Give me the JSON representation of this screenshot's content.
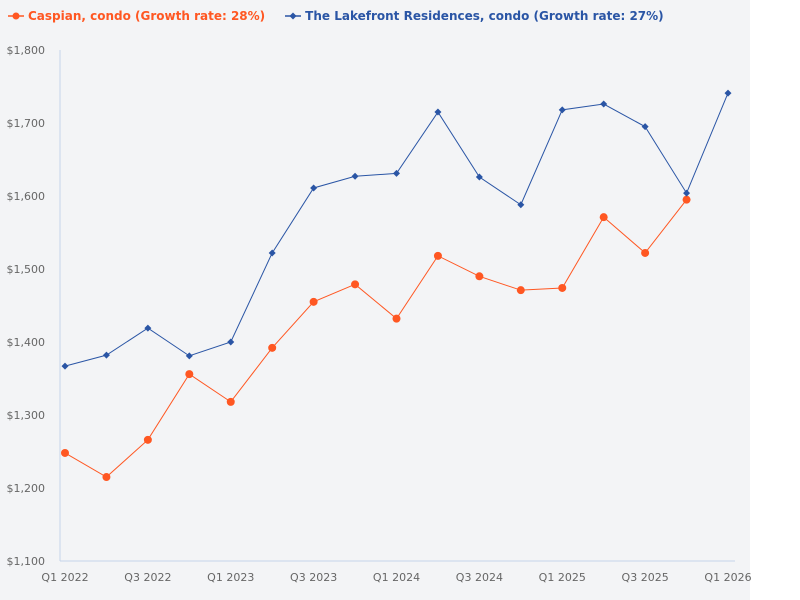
{
  "chart_data": {
    "type": "line",
    "title": "",
    "xlabel": "",
    "ylabel": "",
    "x": [
      "Q1 2022",
      "Q2 2022",
      "Q3 2022",
      "Q4 2022",
      "Q1 2023",
      "Q2 2023",
      "Q3 2023",
      "Q4 2023",
      "Q1 2024",
      "Q2 2024",
      "Q3 2024",
      "Q4 2024",
      "Q1 2025",
      "Q2 2025",
      "Q3 2025",
      "Q4 2025",
      "Q1 2026"
    ],
    "x_tick_labels": [
      "Q1 2022",
      "Q3 2022",
      "Q1 2023",
      "Q3 2023",
      "Q1 2024",
      "Q3 2024",
      "Q1 2025",
      "Q3 2025",
      "Q1 2026"
    ],
    "ylim": [
      1100,
      1800
    ],
    "y_ticks": [
      1100,
      1200,
      1300,
      1400,
      1500,
      1600,
      1700,
      1800
    ],
    "y_tick_labels": [
      "$1,100",
      "$1,200",
      "$1,300",
      "$1,400",
      "$1,500",
      "$1,600",
      "$1,700",
      "$1,800"
    ],
    "grid": false,
    "legend_placement": "top-left",
    "series": [
      {
        "name": "Caspian, condo (Growth rate: 28%)",
        "color": "#ff5722",
        "marker": "circle",
        "values": [
          1248,
          1215,
          1266,
          1356,
          1318,
          1392,
          1455,
          1479,
          1432,
          1518,
          1490,
          1471,
          1474,
          1571,
          1522,
          1595,
          null
        ]
      },
      {
        "name": "The Lakefront Residences, condo (Growth rate: 27%)",
        "color": "#2a55a5",
        "marker": "diamond",
        "values": [
          1367,
          1382,
          1419,
          1381,
          1400,
          1522,
          1611,
          1627,
          1631,
          1715,
          1626,
          1588,
          1718,
          1726,
          1695,
          1604,
          1741
        ]
      }
    ]
  }
}
